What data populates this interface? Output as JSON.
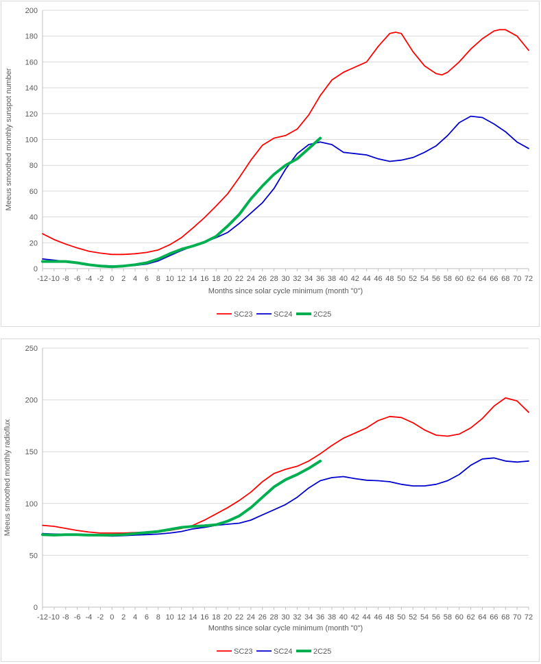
{
  "chart_data": [
    {
      "type": "line",
      "title": "",
      "xlabel": "Months since solar cycle minimum (month \"0\")",
      "ylabel": "Meeus smoothed monthly sunspot number",
      "xlim": [
        -12,
        72
      ],
      "ylim": [
        0,
        200
      ],
      "x_ticks": [
        -12,
        -10,
        -8,
        -6,
        -4,
        -2,
        0,
        2,
        4,
        6,
        8,
        10,
        12,
        14,
        16,
        18,
        20,
        22,
        24,
        26,
        28,
        30,
        32,
        34,
        36,
        38,
        40,
        42,
        44,
        46,
        48,
        50,
        52,
        54,
        56,
        58,
        60,
        62,
        64,
        66,
        68,
        70,
        72
      ],
      "y_ticks": [
        0,
        20,
        40,
        60,
        80,
        100,
        120,
        140,
        160,
        180,
        200
      ],
      "grid": "horizontal",
      "legend_position": "bottom",
      "series": [
        {
          "name": "SC23",
          "color": "#ff0000",
          "x": [
            -12,
            -10,
            -8,
            -6,
            -4,
            -2,
            0,
            2,
            4,
            6,
            8,
            10,
            12,
            14,
            16,
            18,
            20,
            22,
            24,
            26,
            28,
            30,
            32,
            34,
            36,
            38,
            40,
            42,
            44,
            46,
            48,
            49,
            50,
            52,
            54,
            56,
            57,
            58,
            60,
            62,
            64,
            66,
            67,
            68,
            70,
            72
          ],
          "y": [
            27,
            22.5,
            19,
            16,
            13.5,
            12,
            11,
            11,
            11.5,
            12.5,
            14.5,
            18.5,
            24,
            31.5,
            39.5,
            48.5,
            58,
            70.5,
            84,
            95.5,
            101,
            103,
            108,
            119,
            134,
            146,
            152,
            156,
            160,
            172,
            182,
            183,
            182,
            168,
            157,
            151,
            150,
            152,
            160,
            170,
            178,
            184,
            185,
            185,
            180,
            169
          ]
        },
        {
          "name": "SC24",
          "color": "#0000cc",
          "x": [
            -12,
            -10,
            -8,
            -6,
            -4,
            -2,
            0,
            2,
            4,
            6,
            8,
            10,
            12,
            14,
            16,
            18,
            20,
            22,
            24,
            26,
            28,
            30,
            32,
            34,
            36,
            38,
            40,
            42,
            44,
            46,
            48,
            50,
            52,
            54,
            56,
            58,
            60,
            62,
            64,
            66,
            68,
            70,
            72
          ],
          "y": [
            7.5,
            6.5,
            5.5,
            4.5,
            3,
            2.5,
            2,
            2,
            2.5,
            3.5,
            6,
            10,
            14,
            17.5,
            20.5,
            24,
            28,
            35,
            43,
            51,
            62,
            77,
            89,
            96,
            98,
            96,
            90,
            89,
            88,
            85,
            83,
            84,
            86,
            90,
            95,
            103,
            113,
            118,
            117,
            112,
            106,
            98,
            93
          ]
        },
        {
          "name": "2C25",
          "color": "#00b050",
          "x": [
            -12,
            -10,
            -8,
            -6,
            -4,
            -2,
            0,
            2,
            4,
            6,
            8,
            10,
            12,
            14,
            16,
            18,
            20,
            22,
            24,
            26,
            28,
            30,
            32,
            34,
            36
          ],
          "y": [
            5.5,
            5.5,
            5.5,
            4.5,
            3,
            2,
            1.5,
            2,
            3,
            4.5,
            7.5,
            11.5,
            15,
            17.5,
            20.5,
            25,
            33,
            42,
            54,
            64,
            73,
            80,
            85,
            93,
            101
          ]
        }
      ]
    },
    {
      "type": "line",
      "title": "",
      "xlabel": "Months since solar cycle minimum (month \"0\")",
      "ylabel": "Meeus smoothed monthly radioflux",
      "xlim": [
        -12,
        72
      ],
      "ylim": [
        0,
        250
      ],
      "x_ticks": [
        -12,
        -10,
        -8,
        -6,
        -4,
        -2,
        0,
        2,
        4,
        6,
        8,
        10,
        12,
        14,
        16,
        18,
        20,
        22,
        24,
        26,
        28,
        30,
        32,
        34,
        36,
        38,
        40,
        42,
        44,
        46,
        48,
        50,
        52,
        54,
        56,
        58,
        60,
        62,
        64,
        66,
        68,
        70,
        72
      ],
      "y_ticks": [
        0,
        50,
        100,
        150,
        200,
        250
      ],
      "grid": "horizontal",
      "legend_position": "bottom",
      "series": [
        {
          "name": "SC23",
          "color": "#ff0000",
          "x": [
            -12,
            -10,
            -8,
            -6,
            -4,
            -2,
            0,
            2,
            4,
            6,
            8,
            10,
            12,
            14,
            16,
            18,
            20,
            22,
            24,
            26,
            28,
            30,
            32,
            34,
            36,
            38,
            40,
            42,
            44,
            46,
            48,
            50,
            52,
            54,
            56,
            58,
            60,
            62,
            64,
            66,
            68,
            70,
            72
          ],
          "y": [
            79,
            78,
            76,
            74,
            72.5,
            71.5,
            71.5,
            71.5,
            72,
            72.5,
            73,
            74,
            76,
            79,
            84,
            90,
            96,
            103,
            111,
            121,
            129,
            133,
            136,
            141,
            148,
            156,
            163,
            168,
            173,
            180,
            184,
            183,
            178,
            171,
            166,
            165,
            167,
            173,
            182,
            194,
            202,
            199,
            188
          ]
        },
        {
          "name": "SC24",
          "color": "#0000cc",
          "x": [
            -12,
            -10,
            -8,
            -6,
            -4,
            -2,
            0,
            2,
            4,
            6,
            8,
            10,
            12,
            14,
            16,
            18,
            20,
            22,
            24,
            26,
            28,
            30,
            32,
            34,
            36,
            38,
            40,
            42,
            44,
            46,
            48,
            50,
            52,
            54,
            56,
            58,
            60,
            62,
            64,
            66,
            68,
            70,
            72
          ],
          "y": [
            71,
            70.5,
            70.5,
            70,
            69.5,
            69,
            68.5,
            69,
            69.5,
            70,
            70.5,
            71.5,
            73,
            75.5,
            77,
            79,
            80,
            81,
            84,
            89,
            94,
            99,
            106,
            115,
            122,
            125,
            126,
            124,
            122.5,
            122,
            121,
            118.5,
            117,
            117,
            118.5,
            122,
            128,
            137,
            143,
            144,
            141,
            140,
            141
          ]
        },
        {
          "name": "2C25",
          "color": "#00b050",
          "x": [
            -12,
            -10,
            -8,
            -6,
            -4,
            -2,
            0,
            2,
            4,
            6,
            8,
            10,
            12,
            14,
            16,
            18,
            20,
            22,
            24,
            26,
            28,
            30,
            32,
            34,
            36
          ],
          "y": [
            70,
            69.5,
            70,
            70,
            69.5,
            69.5,
            69.5,
            70,
            71,
            72,
            73,
            75,
            77,
            78,
            78.5,
            79.5,
            83,
            88,
            96,
            106,
            116,
            123,
            128,
            134,
            141
          ]
        }
      ]
    }
  ]
}
